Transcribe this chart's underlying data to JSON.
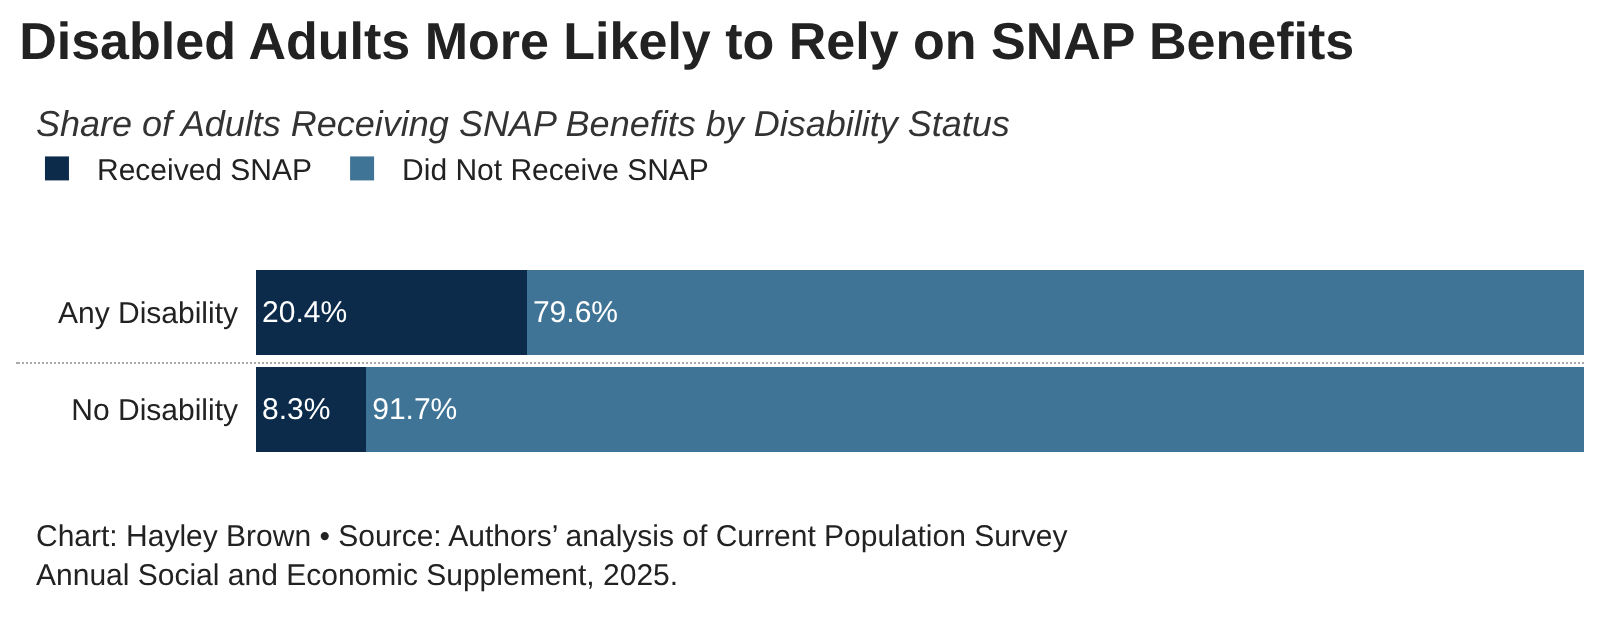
{
  "chart_data": {
    "type": "bar",
    "orientation": "horizontal",
    "stacked": true,
    "title": "Disabled Adults More Likely to Rely on SNAP Benefits",
    "subtitle": "Share of Adults Receiving SNAP Benefits by Disability Status",
    "categories": [
      "Any Disability",
      "No Disability"
    ],
    "series": [
      {
        "name": "Received SNAP",
        "color": "#0c2b4b",
        "values": [
          20.4,
          8.3
        ],
        "value_labels": [
          "20.4%",
          "8.3%"
        ]
      },
      {
        "name": "Did Not Receive SNAP",
        "color": "#3f7496",
        "values": [
          79.6,
          91.7
        ],
        "value_labels": [
          "79.6%",
          "91.7%"
        ]
      }
    ],
    "xlim": [
      0,
      100
    ],
    "tick_labels": "y",
    "legend": "top left",
    "annotations": [
      "Chart: Hayley Brown • Source: Authors’ analysis of Current Population Survey Annual Social and Economic Supplement, 2025."
    ]
  }
}
